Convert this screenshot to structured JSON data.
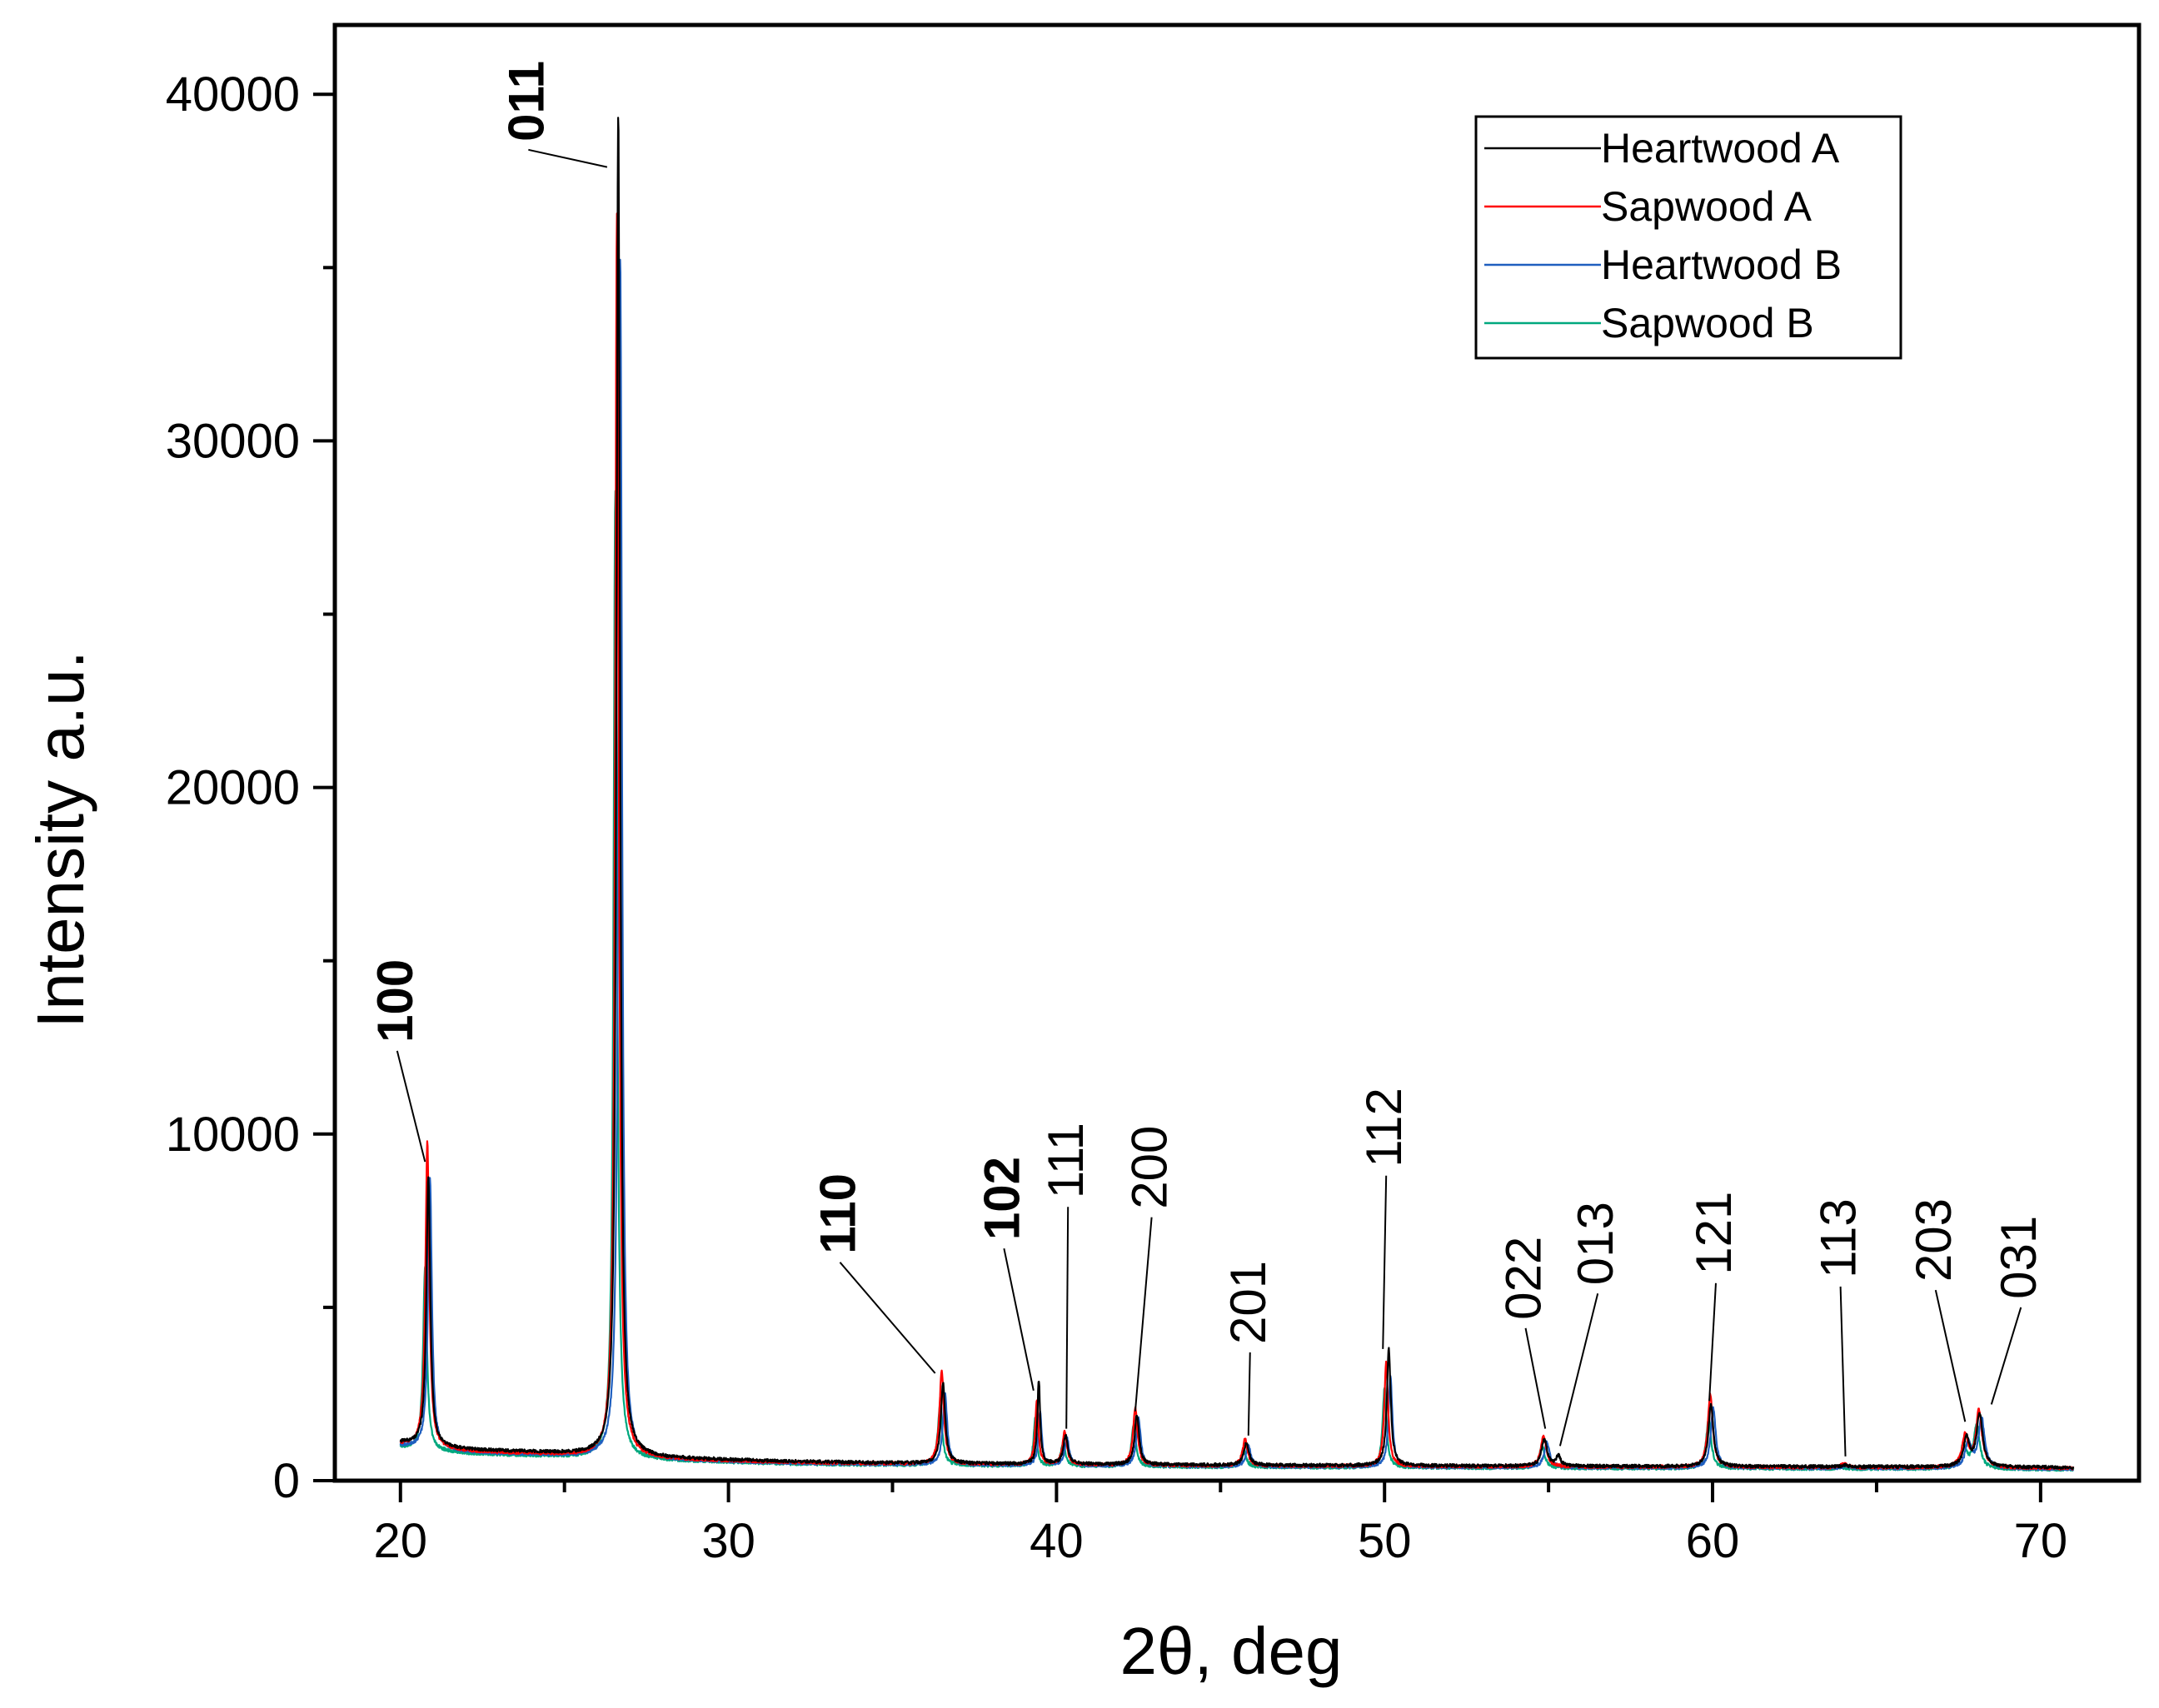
{
  "chart_data": {
    "type": "line",
    "title": "",
    "xlabel": "2θ, deg",
    "ylabel": "Intensity a.u.",
    "xlim": [
      18,
      73
    ],
    "ylim": [
      0,
      42000
    ],
    "x_ticks": [
      20,
      30,
      40,
      50,
      60,
      70
    ],
    "y_ticks": [
      0,
      10000,
      20000,
      30000,
      40000
    ],
    "x_tick_labels": [
      "20",
      "30",
      "40",
      "50",
      "60",
      "70"
    ],
    "y_tick_labels": [
      "0",
      "10000",
      "20000",
      "30000",
      "40000"
    ],
    "grid": false,
    "legend_position": "top-right",
    "series": [
      {
        "name": "Heartwood A",
        "color": "#000000",
        "baseline": [
          [
            20,
            1100
          ],
          [
            22,
            900
          ],
          [
            26,
            750
          ],
          [
            28,
            650
          ],
          [
            32,
            550
          ],
          [
            36,
            500
          ],
          [
            45,
            450
          ],
          [
            55,
            420
          ],
          [
            65,
            400
          ],
          [
            71,
            380
          ]
        ],
        "peaks": [
          [
            20.85,
            8800,
            0.07
          ],
          [
            26.64,
            39500,
            0.065
          ],
          [
            36.54,
            2800,
            0.08
          ],
          [
            39.46,
            2900,
            0.05
          ],
          [
            40.28,
            1300,
            0.08
          ],
          [
            42.45,
            1900,
            0.08
          ],
          [
            45.79,
            1100,
            0.09
          ],
          [
            50.13,
            3800,
            0.07
          ],
          [
            54.87,
            1200,
            0.1
          ],
          [
            55.3,
            700,
            0.08
          ],
          [
            59.95,
            2200,
            0.09
          ],
          [
            64.03,
            450,
            0.1
          ],
          [
            67.74,
            1200,
            0.11
          ],
          [
            68.14,
            1900,
            0.11
          ]
        ]
      },
      {
        "name": "Sapwood A",
        "color": "#ff0000",
        "baseline": [
          [
            20,
            1050
          ],
          [
            22,
            850
          ],
          [
            26,
            700
          ],
          [
            28,
            620
          ],
          [
            32,
            520
          ],
          [
            36,
            480
          ],
          [
            45,
            430
          ],
          [
            55,
            400
          ],
          [
            65,
            380
          ],
          [
            71,
            360
          ]
        ],
        "peaks": [
          [
            20.82,
            9800,
            0.07
          ],
          [
            26.6,
            36600,
            0.065
          ],
          [
            36.5,
            3200,
            0.08
          ],
          [
            39.4,
            2300,
            0.06
          ],
          [
            40.25,
            1400,
            0.08
          ],
          [
            42.4,
            2100,
            0.08
          ],
          [
            45.75,
            1200,
            0.09
          ],
          [
            50.05,
            3400,
            0.07
          ],
          [
            54.85,
            1300,
            0.1
          ],
          [
            59.93,
            2500,
            0.09
          ],
          [
            64,
            500,
            0.1
          ],
          [
            67.7,
            1300,
            0.11
          ],
          [
            68.12,
            2000,
            0.11
          ]
        ]
      },
      {
        "name": "Heartwood B",
        "color": "#1f5fbf",
        "baseline": [
          [
            20,
            1000
          ],
          [
            22,
            820
          ],
          [
            26,
            680
          ],
          [
            28,
            600
          ],
          [
            32,
            500
          ],
          [
            36,
            460
          ],
          [
            45,
            410
          ],
          [
            55,
            380
          ],
          [
            65,
            360
          ],
          [
            71,
            340
          ]
        ],
        "peaks": [
          [
            20.9,
            8700,
            0.07
          ],
          [
            26.7,
            35400,
            0.065
          ],
          [
            36.6,
            2500,
            0.08
          ],
          [
            39.5,
            2000,
            0.06
          ],
          [
            40.32,
            1200,
            0.08
          ],
          [
            42.5,
            1800,
            0.08
          ],
          [
            45.85,
            1000,
            0.09
          ],
          [
            50.18,
            3000,
            0.07
          ],
          [
            54.95,
            1100,
            0.1
          ],
          [
            60.02,
            2100,
            0.09
          ],
          [
            64.08,
            430,
            0.1
          ],
          [
            67.8,
            1100,
            0.11
          ],
          [
            68.2,
            1800,
            0.11
          ]
        ]
      },
      {
        "name": "Sapwood B",
        "color": "#00a87e",
        "baseline": [
          [
            20,
            950
          ],
          [
            22,
            780
          ],
          [
            26,
            650
          ],
          [
            28,
            580
          ],
          [
            32,
            480
          ],
          [
            36,
            440
          ],
          [
            45,
            390
          ],
          [
            55,
            360
          ],
          [
            65,
            340
          ],
          [
            71,
            320
          ]
        ],
        "peaks": [
          [
            20.75,
            6200,
            0.07
          ],
          [
            26.55,
            28600,
            0.065
          ],
          [
            36.45,
            2200,
            0.08
          ],
          [
            39.35,
            1800,
            0.06
          ],
          [
            40.2,
            1100,
            0.08
          ],
          [
            42.35,
            1600,
            0.08
          ],
          [
            45.7,
            900,
            0.09
          ],
          [
            50,
            2700,
            0.07
          ],
          [
            54.8,
            1000,
            0.1
          ],
          [
            59.88,
            1800,
            0.09
          ],
          [
            63.95,
            380,
            0.1
          ],
          [
            67.65,
            1000,
            0.11
          ],
          [
            68.05,
            1600,
            0.11
          ]
        ]
      }
    ],
    "annotations": [
      {
        "text": "100",
        "color": "#e8141b",
        "bold": true,
        "label_x": 19.9,
        "label_y": 12400,
        "tip_x": 20.75,
        "tip_y": 9200
      },
      {
        "text": "011",
        "color": "#000000",
        "bold": true,
        "label_x": 23.9,
        "label_y": 38400,
        "tip_x": 26.3,
        "tip_y": 37900
      },
      {
        "text": "110",
        "color": "#e8141b",
        "bold": true,
        "label_x": 33.4,
        "label_y": 6300,
        "tip_x": 36.3,
        "tip_y": 3100
      },
      {
        "text": "102",
        "color": "#e8141b",
        "bold": true,
        "label_x": 38.4,
        "label_y": 6700,
        "tip_x": 39.3,
        "tip_y": 2600
      },
      {
        "text": "111",
        "color": "#000000",
        "bold": false,
        "label_x": 40.35,
        "label_y": 7900,
        "tip_x": 40.3,
        "tip_y": 1500
      },
      {
        "text": "200",
        "color": "#000000",
        "bold": false,
        "label_x": 42.9,
        "label_y": 7600,
        "tip_x": 42.4,
        "tip_y": 2000
      },
      {
        "text": "201",
        "color": "#000000",
        "bold": false,
        "label_x": 45.9,
        "label_y": 3700,
        "tip_x": 45.85,
        "tip_y": 1300
      },
      {
        "text": "112",
        "color": "#000000",
        "bold": false,
        "label_x": 50.05,
        "label_y": 8800,
        "tip_x": 49.95,
        "tip_y": 3800
      },
      {
        "text": "022",
        "color": "#000000",
        "bold": false,
        "label_x": 54.3,
        "label_y": 4400,
        "tip_x": 54.9,
        "tip_y": 1500
      },
      {
        "text": "013",
        "color": "#000000",
        "bold": false,
        "label_x": 56.5,
        "label_y": 5400,
        "tip_x": 55.35,
        "tip_y": 1000
      },
      {
        "text": "121",
        "color": "#000000",
        "bold": false,
        "label_x": 60.1,
        "label_y": 5700,
        "tip_x": 59.9,
        "tip_y": 2300
      },
      {
        "text": "113",
        "color": "#000000",
        "bold": false,
        "label_x": 63.9,
        "label_y": 5600,
        "tip_x": 64.05,
        "tip_y": 700
      },
      {
        "text": "203",
        "color": "#000000",
        "bold": false,
        "label_x": 66.8,
        "label_y": 5500,
        "tip_x": 67.7,
        "tip_y": 1700
      },
      {
        "text": "031",
        "color": "#000000",
        "bold": false,
        "label_x": 69.4,
        "label_y": 5000,
        "tip_x": 68.5,
        "tip_y": 2200
      }
    ]
  }
}
